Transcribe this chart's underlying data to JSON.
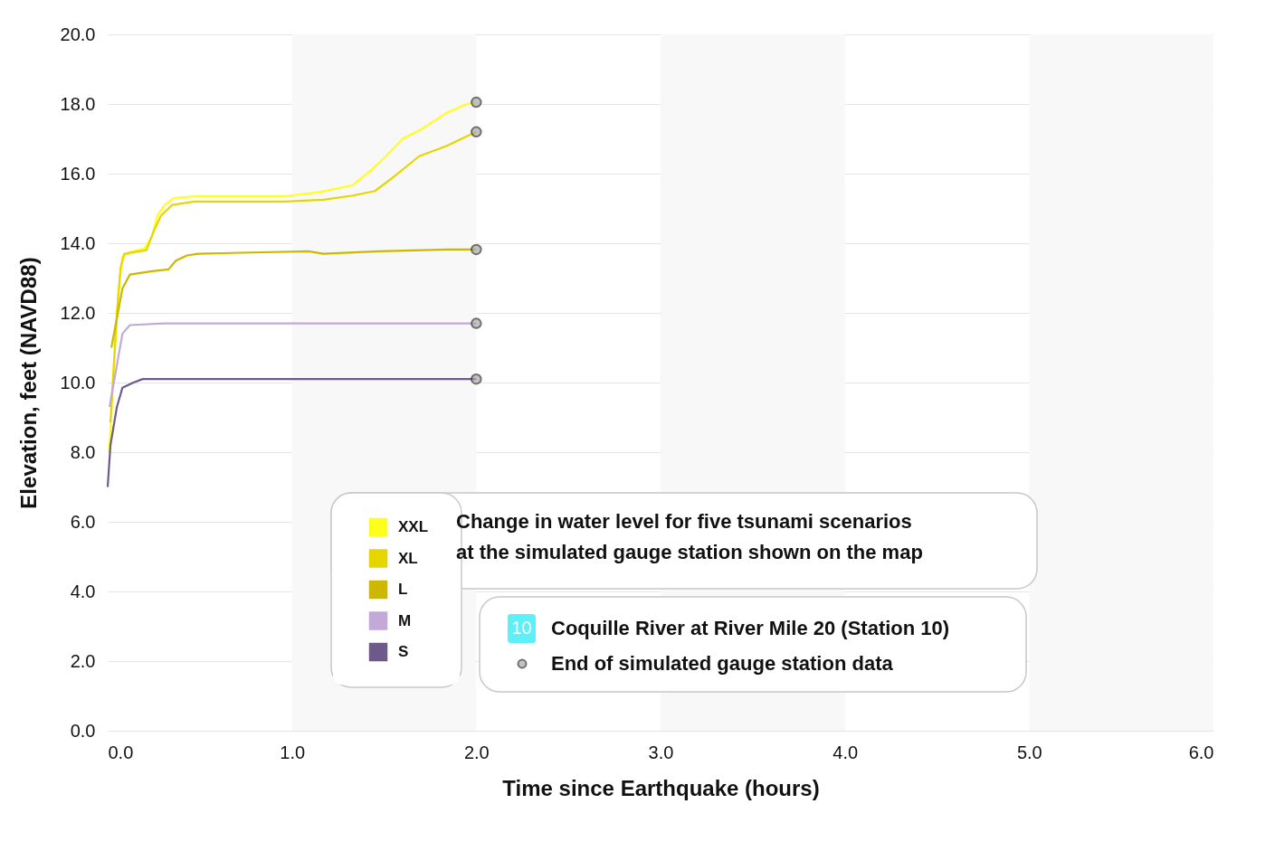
{
  "chart_data": {
    "type": "line",
    "xlabel": "Time since Earthquake  (hours)",
    "ylabel": "Elevation, feet (NAVD88)",
    "xlim": [
      0,
      6
    ],
    "xticks": [
      {
        "value": 0,
        "label": "0.0"
      },
      {
        "value": 1,
        "label": "1.0"
      },
      {
        "value": 2,
        "label": "2.0"
      },
      {
        "value": 3,
        "label": "3.0"
      },
      {
        "value": 4,
        "label": "4.0"
      },
      {
        "value": 5,
        "label": "5.0"
      },
      {
        "value": 6,
        "label": "6.0"
      }
    ],
    "ylim": [
      0,
      20
    ],
    "yticks": [
      {
        "value": 0,
        "label": "0.0"
      },
      {
        "value": 2,
        "label": "2.0"
      },
      {
        "value": 4,
        "label": "4.0"
      },
      {
        "value": 6,
        "label": "6.0"
      },
      {
        "value": 8,
        "label": "8.0"
      },
      {
        "value": 10,
        "label": "10.0"
      },
      {
        "value": 12,
        "label": "12.0"
      },
      {
        "value": 14,
        "label": "14.0"
      },
      {
        "value": 16,
        "label": "16.0"
      },
      {
        "value": 18,
        "label": "18.0"
      },
      {
        "value": 20,
        "label": "20.0"
      }
    ],
    "grid": "y",
    "legend": "bottom",
    "bands": [
      {
        "axis": "x",
        "from": 1,
        "to": 2,
        "color": "#f8f8f8"
      },
      {
        "axis": "x",
        "from": 3,
        "to": 4,
        "color": "#f8f8f8"
      },
      {
        "axis": "x",
        "from": 5,
        "to": 6,
        "color": "#f8f8f8"
      }
    ],
    "series": [
      {
        "name": "XXL",
        "color": "#ffff1e",
        "x": [
          0.008,
          0.04,
          0.06,
          0.08,
          0.12,
          0.2,
          0.24,
          0.27,
          0.31,
          0.36,
          0.48,
          0.96,
          1.15,
          1.33,
          1.43,
          1.51,
          1.6,
          1.71,
          1.84,
          1.95,
          2.0
        ],
        "values": [
          8.0,
          11.0,
          12.7,
          13.6,
          13.75,
          13.85,
          14.2,
          14.8,
          15.1,
          15.3,
          15.35,
          15.35,
          15.47,
          15.67,
          16.1,
          16.5,
          17.0,
          17.3,
          17.75,
          18.0,
          18.05
        ]
      },
      {
        "name": "XL",
        "color": "#e6d600",
        "x": [
          0.015,
          0.05,
          0.07,
          0.09,
          0.21,
          0.25,
          0.29,
          0.35,
          0.47,
          0.96,
          1.17,
          1.33,
          1.45,
          1.55,
          1.69,
          1.84,
          2.0
        ],
        "values": [
          8.85,
          12.0,
          13.3,
          13.7,
          13.8,
          14.35,
          14.8,
          15.1,
          15.2,
          15.2,
          15.25,
          15.37,
          15.5,
          15.9,
          16.5,
          16.8,
          17.2
        ]
      },
      {
        "name": "L",
        "color": "#ccb800",
        "x": [
          0.02,
          0.08,
          0.12,
          0.24,
          0.33,
          0.37,
          0.43,
          0.49,
          1.09,
          1.17,
          1.47,
          1.85,
          2.0
        ],
        "values": [
          11.0,
          12.7,
          13.1,
          13.2,
          13.25,
          13.5,
          13.65,
          13.7,
          13.77,
          13.7,
          13.77,
          13.82,
          13.82
        ]
      },
      {
        "name": "M",
        "color": "#c3a9d8",
        "x": [
          0.01,
          0.05,
          0.08,
          0.12,
          0.3,
          2.0
        ],
        "values": [
          9.3,
          10.5,
          11.4,
          11.65,
          11.7,
          11.7
        ]
      },
      {
        "name": "S",
        "color": "#6e5a8a",
        "x": [
          0.0,
          0.015,
          0.05,
          0.08,
          0.14,
          0.19,
          2.0
        ],
        "values": [
          7.0,
          8.2,
          9.3,
          9.85,
          10.0,
          10.1,
          10.1
        ]
      },
      {
        "name": "End of simulated gauge station data",
        "type": "scatter",
        "marker": "circle",
        "color": "#aaaaaa",
        "x": [
          2.0,
          2.0,
          2.0,
          2.0,
          2.0
        ],
        "values": [
          18.05,
          17.2,
          13.82,
          11.7,
          10.1
        ]
      }
    ],
    "annotations": [
      "Change in water level for five tsunami scenarios\nat the simulated gauge station shown on the map",
      "10",
      "Coquille River at River Mile 20 (Station 10)"
    ]
  }
}
